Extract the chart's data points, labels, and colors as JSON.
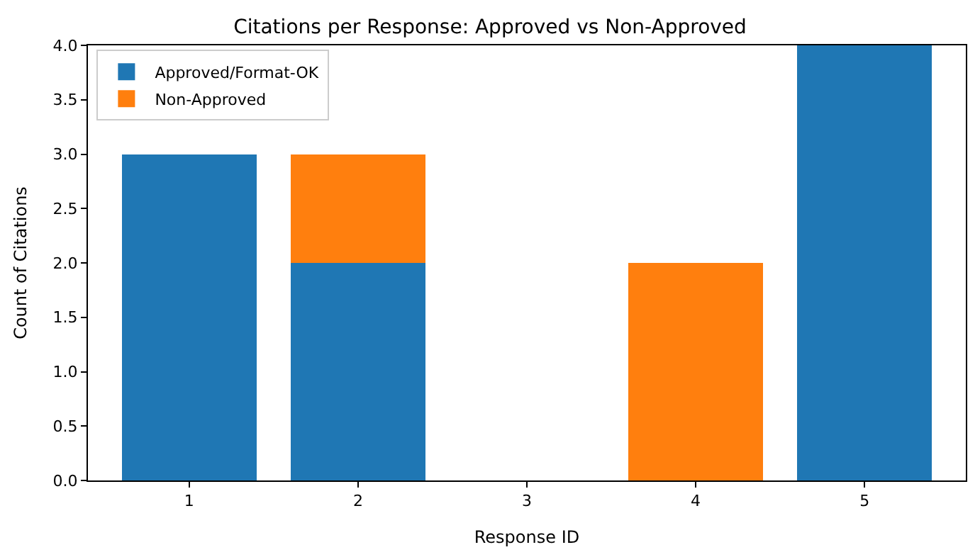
{
  "chart_data": {
    "type": "bar",
    "title": "Citations per Response: Approved vs Non-Approved",
    "xlabel": "Response ID",
    "ylabel": "Count of Citations",
    "categories": [
      "1",
      "2",
      "3",
      "4",
      "5"
    ],
    "series": [
      {
        "name": "Approved/Format-OK",
        "color": "#1f77b4",
        "values": [
          3,
          2,
          0,
          0,
          4
        ]
      },
      {
        "name": "Non-Approved",
        "color": "#ff7f0e",
        "values": [
          0,
          1,
          0,
          2,
          0
        ]
      }
    ],
    "stacked": true,
    "ylim": [
      0,
      4
    ],
    "yticks": [
      {
        "value": 0,
        "label": "0.0"
      },
      {
        "value": 0.5,
        "label": "0.5"
      },
      {
        "value": 1,
        "label": "1.0"
      },
      {
        "value": 1.5,
        "label": "1.5"
      },
      {
        "value": 2,
        "label": "2.0"
      },
      {
        "value": 2.5,
        "label": "2.5"
      },
      {
        "value": 3,
        "label": "3.0"
      },
      {
        "value": 3.5,
        "label": "3.5"
      },
      {
        "value": 4,
        "label": "4.0"
      }
    ],
    "legend": "top left"
  }
}
